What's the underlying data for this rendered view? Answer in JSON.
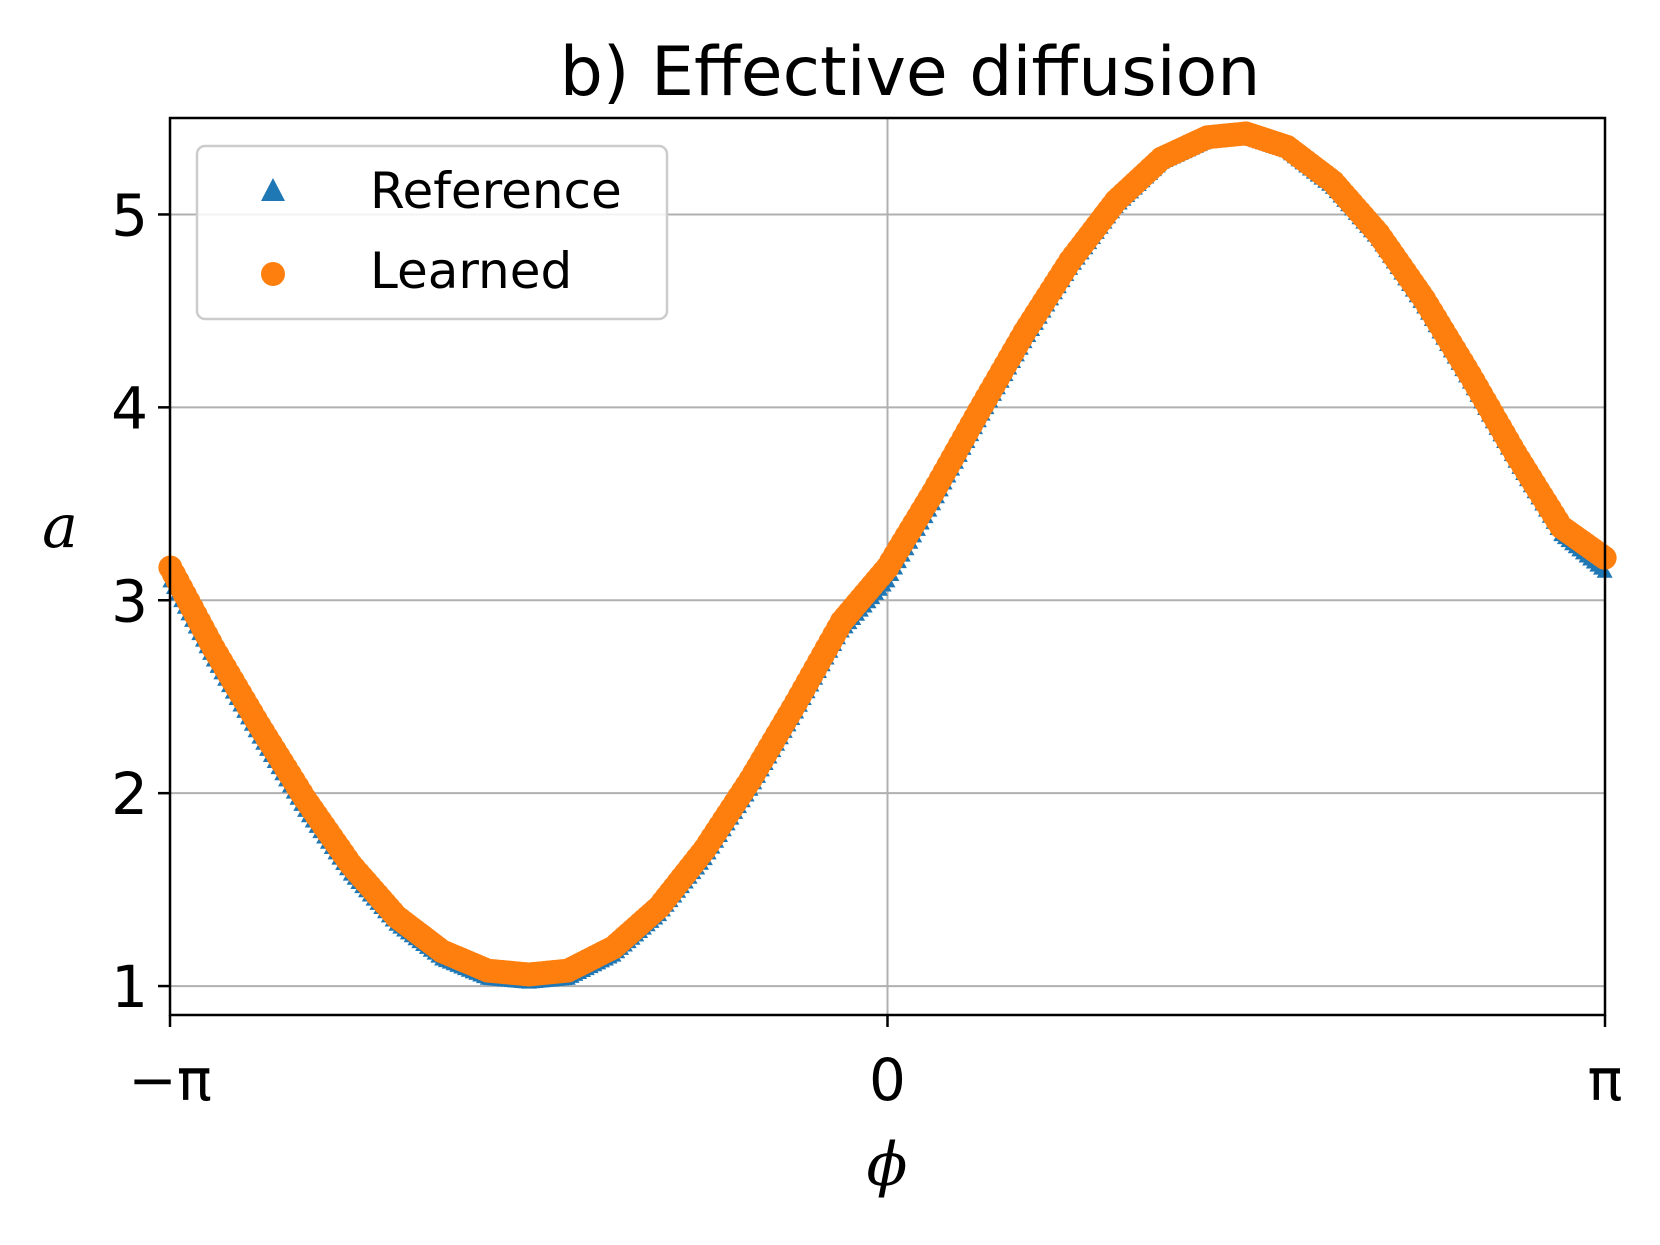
{
  "colors": {
    "reference": "#1f77b4",
    "learned": "#ff7f0e",
    "grid": "#b0b0b0",
    "legend_border": "#cccccc"
  },
  "chart_data": {
    "type": "scatter",
    "title": "b) Effective diffusion",
    "xlabel": "ϕ",
    "ylabel": "a",
    "xlim": [
      -3.14159,
      3.14159
    ],
    "ylim": [
      0.85,
      5.5
    ],
    "grid": true,
    "legend_position": "top-left",
    "xticks": [
      {
        "value": -3.14159,
        "label": "−π"
      },
      {
        "value": 0,
        "label": "0"
      },
      {
        "value": 3.14159,
        "label": "π"
      }
    ],
    "yticks": [
      {
        "value": 1,
        "label": "1"
      },
      {
        "value": 2,
        "label": "2"
      },
      {
        "value": 3,
        "label": "3"
      },
      {
        "value": 4,
        "label": "4"
      },
      {
        "value": 5,
        "label": "5"
      }
    ],
    "series": [
      {
        "name": "Reference",
        "marker": "triangle",
        "x": [
          -3.14,
          -2.95,
          -2.75,
          -2.55,
          -2.35,
          -2.15,
          -1.95,
          -1.75,
          -1.57,
          -1.4,
          -1.2,
          -1.0,
          -0.8,
          -0.6,
          -0.4,
          -0.2,
          0.0,
          0.2,
          0.4,
          0.6,
          0.8,
          1.0,
          1.2,
          1.4,
          1.57,
          1.75,
          1.95,
          2.15,
          2.35,
          2.55,
          2.75,
          2.95,
          3.14
        ],
        "y": [
          3.1,
          2.69,
          2.29,
          1.91,
          1.58,
          1.32,
          1.14,
          1.04,
          1.02,
          1.04,
          1.16,
          1.37,
          1.66,
          2.02,
          2.42,
          2.84,
          3.1,
          3.5,
          3.93,
          4.34,
          4.72,
          5.04,
          5.27,
          5.38,
          5.4,
          5.33,
          5.14,
          4.87,
          4.52,
          4.13,
          3.72,
          3.34,
          3.15
        ]
      },
      {
        "name": "Learned",
        "marker": "circle",
        "x": [
          -3.14,
          -2.95,
          -2.75,
          -2.55,
          -2.35,
          -2.15,
          -1.95,
          -1.75,
          -1.57,
          -1.4,
          -1.2,
          -1.0,
          -0.8,
          -0.6,
          -0.4,
          -0.2,
          0.0,
          0.2,
          0.4,
          0.6,
          0.8,
          1.0,
          1.2,
          1.4,
          1.57,
          1.75,
          1.95,
          2.15,
          2.35,
          2.55,
          2.75,
          2.95,
          3.14
        ],
        "y": [
          3.17,
          2.75,
          2.35,
          1.97,
          1.63,
          1.36,
          1.18,
          1.08,
          1.06,
          1.08,
          1.2,
          1.41,
          1.71,
          2.07,
          2.47,
          2.89,
          3.17,
          3.56,
          3.98,
          4.39,
          4.76,
          5.07,
          5.29,
          5.4,
          5.42,
          5.35,
          5.17,
          4.9,
          4.56,
          4.17,
          3.76,
          3.38,
          3.22
        ]
      }
    ]
  }
}
